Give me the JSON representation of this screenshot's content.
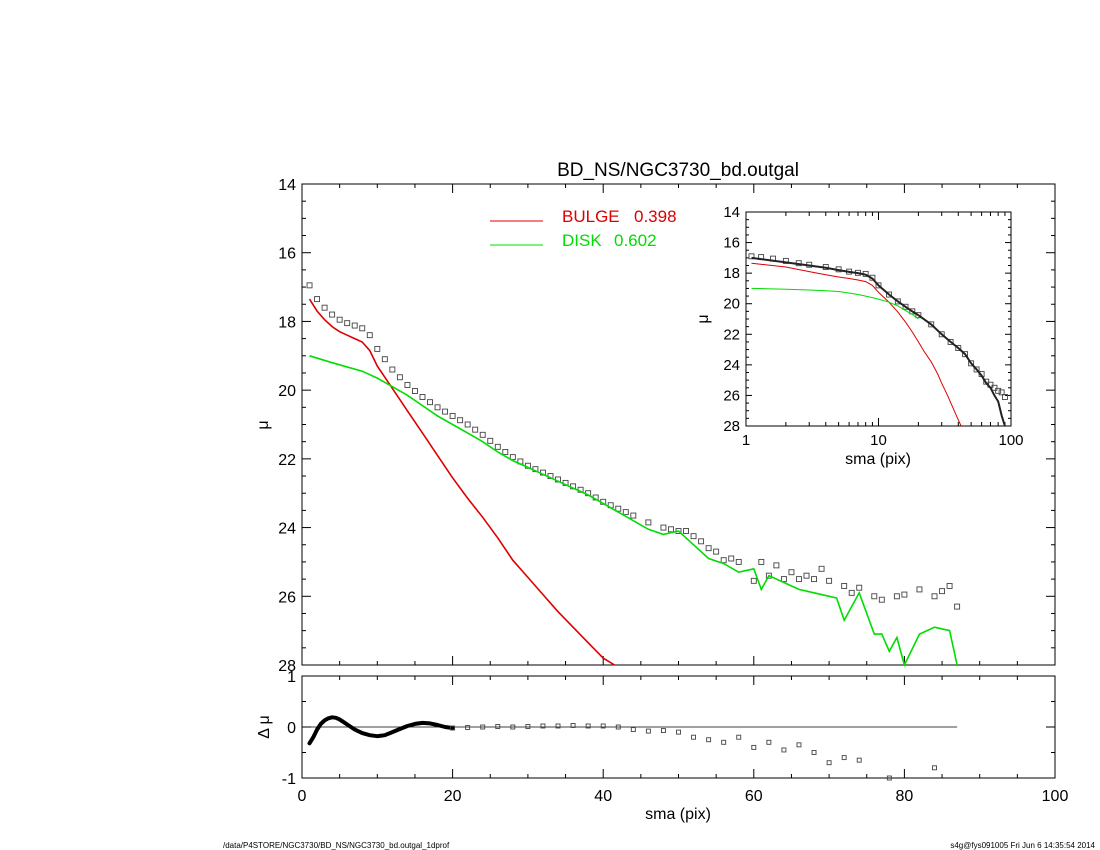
{
  "chart_data": [
    {
      "type": "line",
      "title": "BD_NS/NGC3730_bd.outgal",
      "xlabel": "sma (pix)",
      "ylabel": "μ",
      "xlim": [
        0,
        100
      ],
      "ylim": [
        28,
        14
      ],
      "xticks": [
        "0",
        "20",
        "40",
        "60",
        "80",
        "100"
      ],
      "yticks": [
        "14",
        "16",
        "18",
        "20",
        "22",
        "24",
        "26",
        "28"
      ],
      "legend": [
        {
          "name": "BULGE",
          "value": "0.398",
          "color": "#dd0000"
        },
        {
          "name": "DISK",
          "value": "0.602",
          "color": "#00dd00"
        }
      ],
      "series": [
        {
          "name": "data",
          "style": "squares",
          "x": [
            1,
            2,
            3,
            4,
            5,
            6,
            7,
            8,
            9,
            10,
            12,
            14,
            16,
            18,
            20,
            22,
            24,
            26,
            28,
            30,
            32,
            34,
            36,
            38,
            40,
            42,
            44,
            46,
            48,
            49,
            50,
            51,
            52,
            53,
            54,
            55,
            56,
            57,
            58,
            60,
            61,
            62,
            63,
            64,
            65,
            66,
            67,
            68,
            69,
            70,
            72,
            73,
            74,
            76,
            77,
            79,
            80,
            82,
            84,
            85,
            86,
            87
          ],
          "y": [
            16.95,
            17.35,
            17.6,
            17.8,
            17.95,
            18.05,
            18.12,
            18.2,
            18.4,
            18.8,
            19.4,
            19.85,
            20.2,
            20.5,
            20.75,
            21.0,
            21.3,
            21.65,
            21.95,
            22.2,
            22.4,
            22.6,
            22.8,
            23.0,
            23.25,
            23.45,
            23.65,
            23.85,
            24.0,
            24.05,
            24.1,
            24.1,
            24.25,
            24.4,
            24.6,
            24.7,
            24.95,
            24.9,
            25.0,
            25.55,
            25.0,
            25.4,
            25.1,
            25.5,
            25.3,
            25.5,
            25.4,
            25.5,
            25.2,
            25.55,
            25.7,
            25.9,
            25.75,
            26.0,
            26.1,
            26.0,
            25.95,
            25.8,
            26.0,
            25.85,
            25.7,
            26.3
          ]
        },
        {
          "name": "BULGE",
          "color": "#dd0000",
          "x": [
            1,
            2,
            3,
            4,
            5,
            6,
            7,
            8,
            9,
            10,
            12,
            14,
            16,
            18,
            20,
            22,
            24,
            26,
            28,
            30,
            32,
            34,
            36,
            38,
            40,
            41.5
          ],
          "y": [
            17.35,
            17.7,
            17.95,
            18.15,
            18.3,
            18.4,
            18.5,
            18.6,
            18.85,
            19.3,
            19.95,
            20.6,
            21.25,
            21.9,
            22.55,
            23.15,
            23.7,
            24.3,
            24.95,
            25.45,
            25.95,
            26.45,
            26.9,
            27.35,
            27.8,
            28.0
          ]
        },
        {
          "name": "DISK",
          "color": "#00dd00",
          "x": [
            1,
            4,
            8,
            10,
            12,
            14,
            16,
            18,
            20,
            22,
            24,
            26,
            28,
            30,
            32,
            34,
            36,
            38,
            40,
            42,
            44,
            46,
            48,
            50,
            52,
            54,
            56,
            58,
            60,
            61,
            62,
            64,
            66,
            68,
            70,
            71,
            72,
            74,
            76,
            77,
            78,
            79,
            80,
            82,
            84,
            86,
            87
          ],
          "y": [
            19.0,
            19.2,
            19.45,
            19.65,
            19.9,
            20.15,
            20.45,
            20.75,
            21.0,
            21.25,
            21.5,
            21.8,
            22.05,
            22.25,
            22.45,
            22.65,
            22.85,
            23.05,
            23.3,
            23.55,
            23.8,
            24.05,
            24.2,
            24.1,
            24.5,
            24.9,
            25.05,
            25.3,
            25.2,
            25.8,
            25.4,
            25.6,
            25.8,
            25.9,
            26.0,
            26.05,
            26.7,
            25.9,
            27.1,
            27.1,
            27.6,
            27.2,
            28.0,
            27.1,
            26.9,
            27.0,
            28.0
          ]
        }
      ]
    },
    {
      "type": "line",
      "title": "",
      "xlabel": "sma (pix)",
      "ylabel": "μ",
      "xscale": "log",
      "xlim": [
        1,
        100
      ],
      "ylim": [
        28,
        14
      ],
      "xticks": [
        "1",
        "10",
        "100"
      ],
      "yticks": [
        "14",
        "16",
        "18",
        "20",
        "22",
        "24",
        "26",
        "28"
      ],
      "series": [
        {
          "name": "data",
          "style": "squares",
          "x": [
            1.1,
            1.3,
            1.6,
            2,
            2.5,
            3,
            4,
            5,
            6,
            7,
            8,
            9,
            10,
            12,
            14,
            16,
            18,
            20,
            25,
            30,
            35,
            40,
            45,
            50,
            55,
            60,
            65,
            70,
            75,
            80,
            85,
            90
          ],
          "y": [
            16.9,
            16.95,
            17.05,
            17.2,
            17.35,
            17.45,
            17.6,
            17.75,
            17.9,
            17.98,
            18.05,
            18.3,
            18.8,
            19.4,
            19.85,
            20.2,
            20.5,
            20.75,
            21.35,
            22.0,
            22.5,
            22.9,
            23.3,
            23.9,
            24.3,
            24.6,
            25.1,
            25.3,
            25.5,
            25.7,
            25.8,
            26.1
          ]
        },
        {
          "name": "BULGE",
          "color": "#dd0000",
          "x": [
            1.1,
            2,
            3,
            4,
            5,
            6,
            7,
            8,
            9,
            10,
            12,
            14,
            16,
            18,
            20,
            22,
            25,
            28,
            30,
            33,
            36,
            40,
            42
          ],
          "y": [
            17.35,
            17.6,
            17.9,
            18.1,
            18.25,
            18.35,
            18.45,
            18.55,
            18.8,
            19.25,
            19.9,
            20.55,
            21.2,
            21.85,
            22.5,
            23.1,
            23.8,
            24.6,
            25.2,
            25.95,
            26.7,
            27.6,
            28.0
          ]
        },
        {
          "name": "DISK",
          "color": "#00dd00",
          "x": [
            1.1,
            2,
            3,
            4,
            5,
            6,
            7,
            8,
            9,
            10,
            12,
            14,
            16,
            18,
            20
          ],
          "y": [
            19.0,
            19.05,
            19.1,
            19.15,
            19.2,
            19.3,
            19.4,
            19.5,
            19.6,
            19.7,
            19.9,
            20.15,
            20.45,
            20.7,
            21.0
          ]
        },
        {
          "name": "model",
          "color": "#222222",
          "x": [
            1.1,
            2,
            3,
            4,
            5,
            6,
            7,
            8,
            9,
            10,
            12,
            14,
            16,
            18,
            20,
            25,
            30,
            35,
            40,
            45,
            50,
            55,
            60,
            65,
            70,
            75,
            80,
            85,
            90
          ],
          "y": [
            17.0,
            17.3,
            17.5,
            17.65,
            17.8,
            17.92,
            18.0,
            18.1,
            18.35,
            18.8,
            19.4,
            19.85,
            20.2,
            20.5,
            20.75,
            21.35,
            22.0,
            22.5,
            22.9,
            23.3,
            23.9,
            24.3,
            24.7,
            25.2,
            25.5,
            26.0,
            26.4,
            27.3,
            28.0
          ]
        }
      ]
    },
    {
      "type": "line",
      "title": "",
      "xlabel": "sma (pix)",
      "ylabel": "Δ μ",
      "xlim": [
        0,
        100
      ],
      "ylim": [
        -1,
        1
      ],
      "xticks": [
        "0",
        "20",
        "40",
        "60",
        "80",
        "100"
      ],
      "yticks": [
        "-1",
        "0",
        "1"
      ],
      "series": [
        {
          "name": "residual-curve",
          "color": "#000000",
          "x": [
            1,
            1.5,
            2,
            2.5,
            3,
            3.5,
            4,
            4.5,
            5,
            5.5,
            6,
            7,
            8,
            9,
            10,
            11,
            12,
            13,
            14,
            15,
            16,
            17,
            18,
            19,
            20
          ],
          "y": [
            -0.32,
            -0.2,
            -0.05,
            0.06,
            0.13,
            0.17,
            0.19,
            0.18,
            0.15,
            0.1,
            0.05,
            -0.05,
            -0.12,
            -0.16,
            -0.18,
            -0.16,
            -0.1,
            -0.04,
            0.02,
            0.06,
            0.08,
            0.07,
            0.04,
            0.0,
            -0.02
          ]
        },
        {
          "name": "residual-points",
          "style": "squares",
          "x": [
            20,
            22,
            24,
            26,
            28,
            30,
            32,
            34,
            36,
            38,
            40,
            42,
            44,
            46,
            48,
            50,
            52,
            54,
            56,
            58,
            60,
            62,
            64,
            66,
            68,
            70,
            72,
            74,
            78,
            84
          ],
          "y": [
            -0.02,
            -0.01,
            0.0,
            0.01,
            0.0,
            0.01,
            0.02,
            0.02,
            0.03,
            0.02,
            0.02,
            0.0,
            -0.05,
            -0.08,
            -0.07,
            -0.1,
            -0.2,
            -0.25,
            -0.3,
            -0.2,
            -0.4,
            -0.3,
            -0.45,
            -0.35,
            -0.5,
            -0.7,
            -0.6,
            -0.65,
            -1.0,
            -0.8
          ]
        }
      ]
    }
  ],
  "footer": {
    "left": "/data/P4STORE/NGC3730/BD_NS/NGC3730_bd.outgal_1dprof",
    "right": "s4g@fys091005  Fri Jun  6 14:35:54 2014"
  }
}
